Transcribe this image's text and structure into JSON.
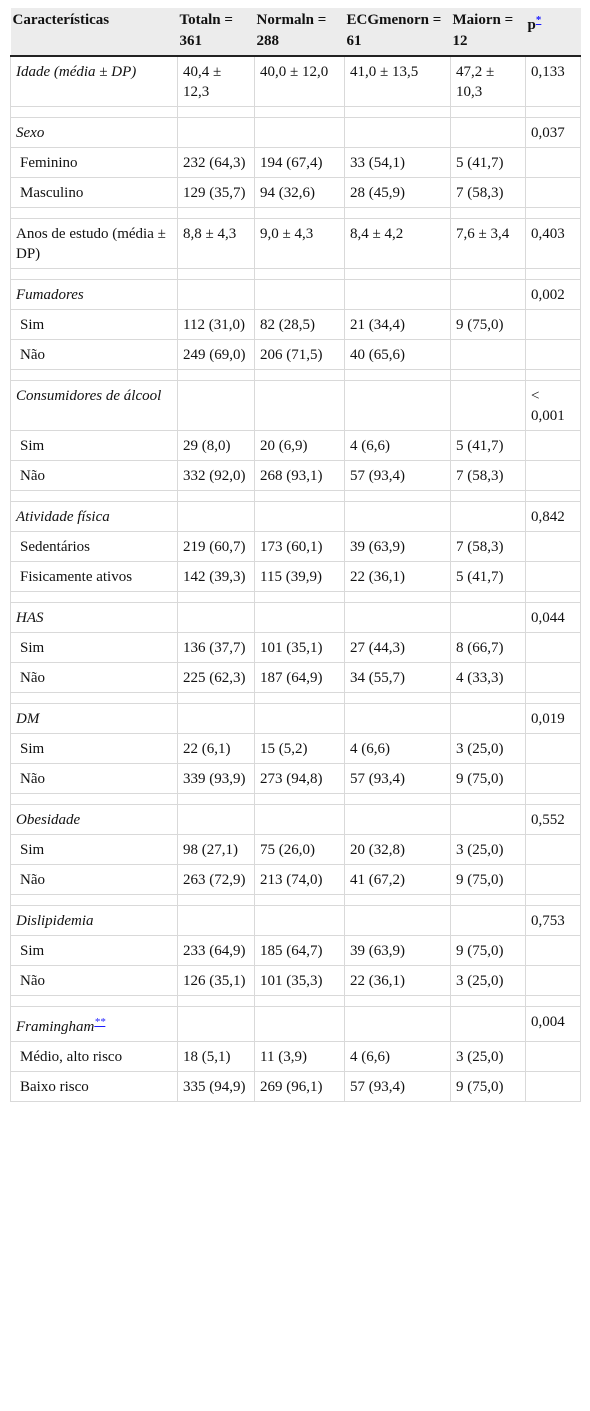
{
  "headers": [
    "Características",
    "Totaln = 361",
    "Normaln = 288",
    "ECGmenorn = 61",
    "Maiorn = 12",
    "p"
  ],
  "header_footnote": "*",
  "rows": [
    {
      "kind": "data",
      "style": "group",
      "cells": [
        "Idade (média ± DP)",
        "40,4 ± 12,3",
        "40,0 ± 12,0",
        "41,0 ± 13,5",
        "47,2 ± 10,3",
        "0,133"
      ]
    },
    {
      "kind": "spacer"
    },
    {
      "kind": "data",
      "style": "group",
      "cells": [
        "Sexo",
        "",
        "",
        "",
        "",
        "0,037"
      ]
    },
    {
      "kind": "data",
      "style": "sub",
      "cells": [
        "Feminino",
        "232 (64,3)",
        "194 (67,4)",
        "33 (54,1)",
        "5 (41,7)",
        ""
      ]
    },
    {
      "kind": "data",
      "style": "sub",
      "cells": [
        "Masculino",
        "129 (35,7)",
        "94 (32,6)",
        "28 (45,9)",
        "7 (58,3)",
        ""
      ]
    },
    {
      "kind": "spacer"
    },
    {
      "kind": "data",
      "style": "plain",
      "cells": [
        "Anos de estudo (média ± DP)",
        "8,8 ± 4,3",
        "9,0 ± 4,3",
        "8,4 ± 4,2",
        "7,6 ± 3,4",
        "0,403"
      ]
    },
    {
      "kind": "spacer"
    },
    {
      "kind": "data",
      "style": "group",
      "cells": [
        "Fumadores",
        "",
        "",
        "",
        "",
        "0,002"
      ]
    },
    {
      "kind": "data",
      "style": "sub",
      "cells": [
        "Sim",
        "112 (31,0)",
        "82 (28,5)",
        "21 (34,4)",
        "9 (75,0)",
        ""
      ]
    },
    {
      "kind": "data",
      "style": "sub",
      "cells": [
        "Não",
        "249 (69,0)",
        "206 (71,5)",
        "40 (65,6)",
        "",
        ""
      ]
    },
    {
      "kind": "spacer"
    },
    {
      "kind": "data",
      "style": "group",
      "cells": [
        "Consumidores de álcool",
        "",
        "",
        "",
        "",
        "< 0,001"
      ]
    },
    {
      "kind": "data",
      "style": "sub",
      "cells": [
        "Sim",
        "29 (8,0)",
        "20 (6,9)",
        "4 (6,6)",
        "5 (41,7)",
        ""
      ]
    },
    {
      "kind": "data",
      "style": "sub",
      "cells": [
        "Não",
        "332 (92,0)",
        "268 (93,1)",
        "57 (93,4)",
        "7 (58,3)",
        ""
      ]
    },
    {
      "kind": "spacer"
    },
    {
      "kind": "data",
      "style": "group",
      "cells": [
        "Atividade física",
        "",
        "",
        "",
        "",
        "0,842"
      ]
    },
    {
      "kind": "data",
      "style": "sub",
      "cells": [
        "Sedentários",
        "219 (60,7)",
        "173 (60,1)",
        "39 (63,9)",
        "7 (58,3)",
        ""
      ]
    },
    {
      "kind": "data",
      "style": "sub",
      "cells": [
        "Fisicamente ativos",
        "142 (39,3)",
        "115 (39,9)",
        "22 (36,1)",
        "5 (41,7)",
        ""
      ]
    },
    {
      "kind": "spacer"
    },
    {
      "kind": "data",
      "style": "group",
      "cells": [
        "HAS",
        "",
        "",
        "",
        "",
        "0,044"
      ]
    },
    {
      "kind": "data",
      "style": "sub",
      "cells": [
        "Sim",
        "136 (37,7)",
        "101 (35,1)",
        "27 (44,3)",
        "8 (66,7)",
        ""
      ]
    },
    {
      "kind": "data",
      "style": "sub",
      "cells": [
        "Não",
        "225 (62,3)",
        "187 (64,9)",
        "34 (55,7)",
        "4 (33,3)",
        ""
      ]
    },
    {
      "kind": "spacer"
    },
    {
      "kind": "data",
      "style": "group",
      "cells": [
        "DM",
        "",
        "",
        "",
        "",
        "0,019"
      ]
    },
    {
      "kind": "data",
      "style": "sub",
      "cells": [
        "Sim",
        "22 (6,1)",
        "15 (5,2)",
        "4 (6,6)",
        "3 (25,0)",
        ""
      ]
    },
    {
      "kind": "data",
      "style": "sub",
      "cells": [
        "Não",
        "339 (93,9)",
        "273 (94,8)",
        "57 (93,4)",
        "9 (75,0)",
        ""
      ]
    },
    {
      "kind": "spacer"
    },
    {
      "kind": "data",
      "style": "group",
      "cells": [
        "Obesidade",
        "",
        "",
        "",
        "",
        "0,552"
      ]
    },
    {
      "kind": "data",
      "style": "sub",
      "cells": [
        "Sim",
        "98 (27,1)",
        "75 (26,0)",
        "20 (32,8)",
        "3 (25,0)",
        ""
      ]
    },
    {
      "kind": "data",
      "style": "sub",
      "cells": [
        "Não",
        "263 (72,9)",
        "213 (74,0)",
        "41 (67,2)",
        "9 (75,0)",
        ""
      ]
    },
    {
      "kind": "spacer"
    },
    {
      "kind": "data",
      "style": "group",
      "cells": [
        "Dislipidemia",
        "",
        "",
        "",
        "",
        "0,753"
      ]
    },
    {
      "kind": "data",
      "style": "sub",
      "cells": [
        "Sim",
        "233 (64,9)",
        "185 (64,7)",
        "39 (63,9)",
        "9 (75,0)",
        ""
      ]
    },
    {
      "kind": "data",
      "style": "sub",
      "cells": [
        "Não",
        "126 (35,1)",
        "101 (35,3)",
        "22 (36,1)",
        "3 (25,0)",
        ""
      ]
    },
    {
      "kind": "spacer"
    },
    {
      "kind": "data",
      "style": "group",
      "cells": [
        "Framingham",
        "",
        "",
        "",
        "",
        "0,004"
      ],
      "footnote": "**"
    },
    {
      "kind": "data",
      "style": "sub",
      "cells": [
        "Médio, alto risco",
        "18 (5,1)",
        "11 (3,9)",
        "4 (6,6)",
        "3 (25,0)",
        ""
      ]
    },
    {
      "kind": "data",
      "style": "sub",
      "cells": [
        "Baixo risco",
        "335 (94,9)",
        "269 (96,1)",
        "57 (93,4)",
        "9 (75,0)",
        ""
      ]
    }
  ]
}
